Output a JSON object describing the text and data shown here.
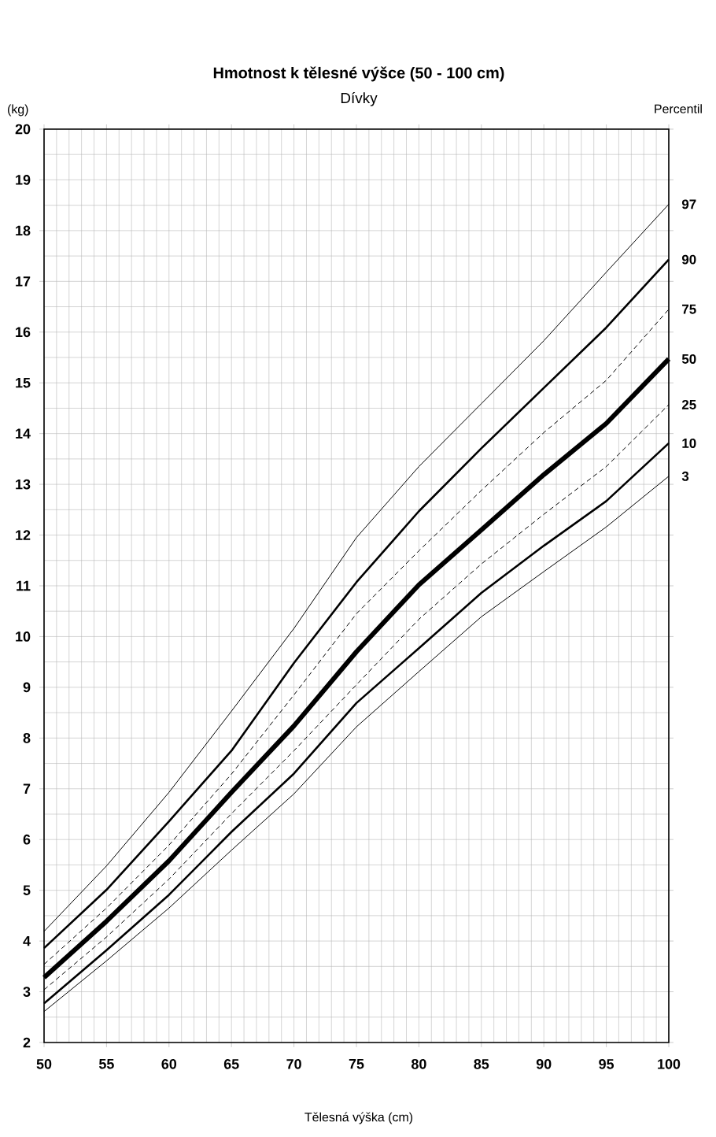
{
  "chart_data": {
    "type": "line",
    "title": "Hmotnost k tělesné výšce (50 - 100 cm)",
    "subtitle": "Dívky",
    "xlabel": "Tělesná výška (cm)",
    "ylabel": "(kg)",
    "legend_title": "Percentil",
    "x": [
      50,
      55,
      60,
      65,
      70,
      75,
      80,
      85,
      90,
      95,
      100
    ],
    "xlim": [
      50,
      100
    ],
    "xticks": [
      50,
      55,
      60,
      65,
      70,
      75,
      80,
      85,
      90,
      95,
      100
    ],
    "ylim": [
      2,
      20
    ],
    "yticks": [
      2,
      3,
      4,
      5,
      6,
      7,
      8,
      9,
      10,
      11,
      12,
      13,
      14,
      15,
      16,
      17,
      18,
      19,
      20
    ],
    "grid": true,
    "legend": false,
    "marker": "none",
    "series": [
      {
        "name": "97",
        "color": "#000000",
        "line_style": "solid",
        "values": [
          4.19,
          5.48,
          6.93,
          8.53,
          10.16,
          11.95,
          13.35,
          14.59,
          15.83,
          17.18,
          18.52
        ]
      },
      {
        "name": "90",
        "color": "#000000",
        "line_style": "solid",
        "values": [
          3.86,
          5.01,
          6.36,
          7.75,
          9.48,
          11.07,
          12.47,
          13.71,
          14.9,
          16.09,
          17.43
        ]
      },
      {
        "name": "75",
        "color": "#000000",
        "line_style": "dashed",
        "values": [
          3.54,
          4.65,
          5.89,
          7.29,
          8.85,
          10.45,
          11.69,
          12.88,
          14.02,
          15.05,
          16.45
        ]
      },
      {
        "name": "50",
        "color": "#000000",
        "line_style": "solid",
        "values": [
          3.28,
          4.39,
          5.58,
          6.93,
          8.24,
          9.7,
          11.02,
          12.1,
          13.19,
          14.2,
          15.47
        ]
      },
      {
        "name": "25",
        "color": "#000000",
        "line_style": "dashed",
        "values": [
          3.04,
          4.08,
          5.22,
          6.51,
          7.75,
          9.05,
          10.34,
          11.43,
          12.41,
          13.35,
          14.57
        ]
      },
      {
        "name": "10",
        "color": "#000000",
        "line_style": "solid",
        "values": [
          2.77,
          3.82,
          4.91,
          6.15,
          7.3,
          8.69,
          9.77,
          10.86,
          11.79,
          12.67,
          13.81
        ]
      },
      {
        "name": "3",
        "color": "#000000",
        "line_style": "solid",
        "values": [
          2.61,
          3.61,
          4.65,
          5.79,
          6.9,
          8.22,
          9.31,
          10.39,
          11.28,
          12.16,
          13.16
        ]
      }
    ]
  }
}
